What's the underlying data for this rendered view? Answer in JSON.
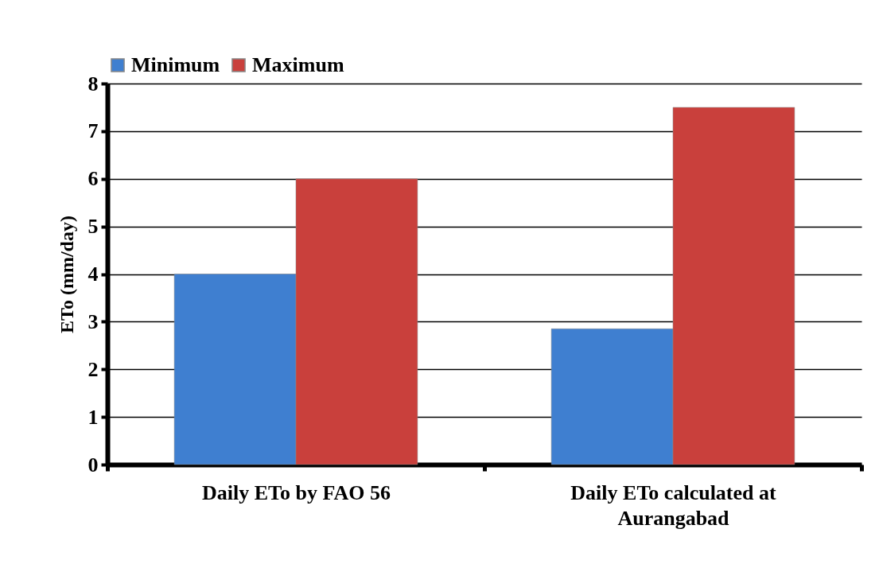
{
  "chart_data": {
    "type": "bar",
    "ylabel": "ETo (mm/day)",
    "categories": [
      "Daily ETo by FAO 56",
      "Daily ETo calculated at Aurangabad"
    ],
    "series": [
      {
        "name": "Minimum",
        "color": "#3f7fd0",
        "values": [
          4,
          2.85
        ]
      },
      {
        "name": "Maximum",
        "color": "#c9403c",
        "values": [
          6,
          7.5
        ]
      }
    ],
    "ylim": [
      0,
      8
    ],
    "yticks": [
      0,
      1,
      2,
      3,
      4,
      5,
      6,
      7,
      8
    ],
    "grid": "y",
    "legend": "top"
  }
}
